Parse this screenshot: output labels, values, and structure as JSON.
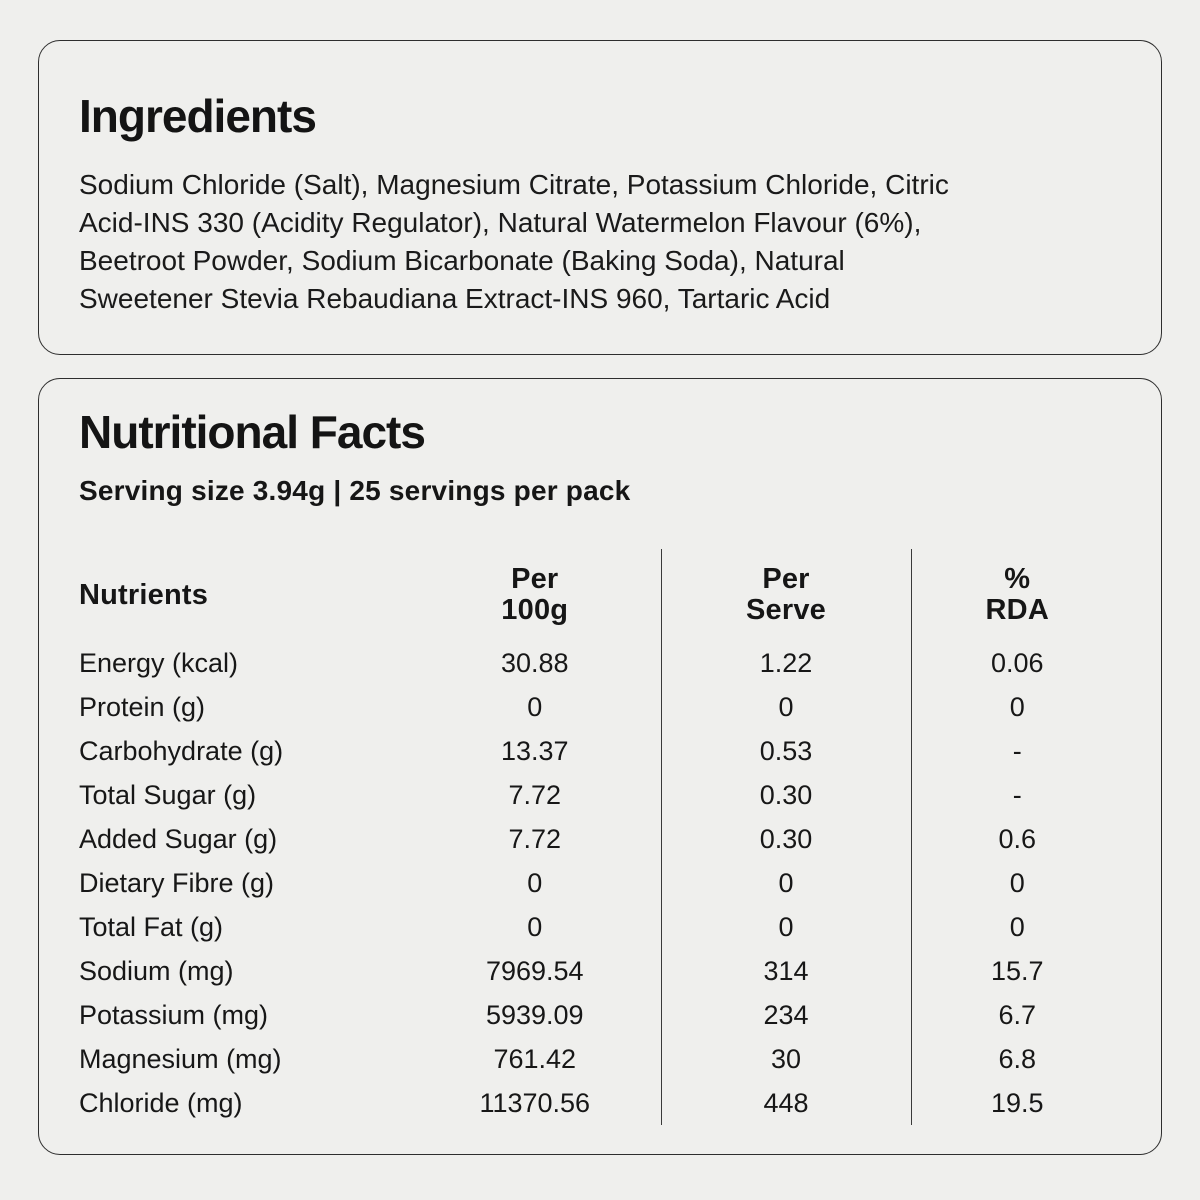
{
  "colors": {
    "background": "#efefed",
    "card_border": "#2e2e2e",
    "divider": "#3a3a3a",
    "text": "#161616"
  },
  "ingredients": {
    "title": "Ingredients",
    "lines": [
      "Sodium Chloride (Salt), Magnesium Citrate, Potassium Chloride, Citric",
      "Acid-INS 330 (Acidity Regulator), Natural Watermelon Flavour (6%),",
      "Beetroot Powder, Sodium Bicarbonate (Baking Soda), Natural",
      "Sweetener Stevia Rebaudiana Extract-INS 960, Tartaric Acid"
    ],
    "full_text": "Sodium Chloride (Salt), Magnesium Citrate, Potassium Chloride, Citric Acid-INS 330 (Acidity Regulator), Natural Watermelon Flavour (6%), Beetroot Powder, Sodium Bicarbonate (Baking Soda), Natural Sweetener Stevia Rebaudiana Extract-INS 960, Tartaric Acid"
  },
  "nutrition": {
    "title": "Nutritional Facts",
    "serving_line": "Serving size 3.94g | 25 servings per pack",
    "table": {
      "columns": [
        "Nutrients",
        "Per\n100g",
        "Per\nServe",
        "%\nRDA"
      ],
      "rows": [
        {
          "nutrient": "Energy (kcal)",
          "per_100g": "30.88",
          "per_serve": "1.22",
          "rda": "0.06"
        },
        {
          "nutrient": "Protein (g)",
          "per_100g": "0",
          "per_serve": "0",
          "rda": "0"
        },
        {
          "nutrient": "Carbohydrate (g)",
          "per_100g": "13.37",
          "per_serve": "0.53",
          "rda": "-"
        },
        {
          "nutrient": "Total Sugar (g)",
          "per_100g": "7.72",
          "per_serve": "0.30",
          "rda": "-"
        },
        {
          "nutrient": "Added Sugar (g)",
          "per_100g": "7.72",
          "per_serve": "0.30",
          "rda": "0.6"
        },
        {
          "nutrient": "Dietary Fibre (g)",
          "per_100g": "0",
          "per_serve": "0",
          "rda": "0"
        },
        {
          "nutrient": "Total Fat (g)",
          "per_100g": "0",
          "per_serve": "0",
          "rda": "0"
        },
        {
          "nutrient": "Sodium (mg)",
          "per_100g": "7969.54",
          "per_serve": "314",
          "rda": "15.7"
        },
        {
          "nutrient": "Potassium (mg)",
          "per_100g": "5939.09",
          "per_serve": "234",
          "rda": "6.7"
        },
        {
          "nutrient": "Magnesium (mg)",
          "per_100g": "761.42",
          "per_serve": "30",
          "rda": "6.8"
        },
        {
          "nutrient": "Chloride (mg)",
          "per_100g": "11370.56",
          "per_serve": "448",
          "rda": "19.5"
        }
      ]
    }
  }
}
